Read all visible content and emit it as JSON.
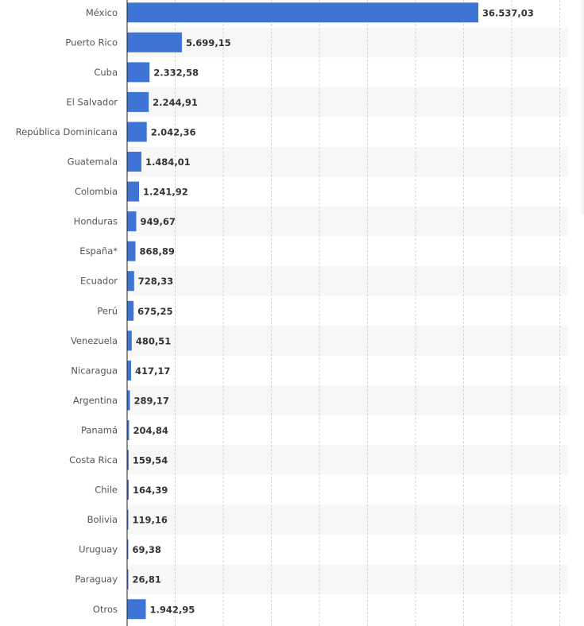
{
  "chart_data": {
    "type": "bar",
    "orientation": "horizontal",
    "categories": [
      "México",
      "Puerto Rico",
      "Cuba",
      "El Salvador",
      "República Dominicana",
      "Guatemala",
      "Colombia",
      "Honduras",
      "España*",
      "Ecuador",
      "Perú",
      "Venezuela",
      "Nicaragua",
      "Argentina",
      "Panamá",
      "Costa Rica",
      "Chile",
      "Bolivia",
      "Uruguay",
      "Paraguay",
      "Otros"
    ],
    "values": [
      36537.03,
      5699.15,
      2332.58,
      2244.91,
      2042.36,
      1484.01,
      1241.92,
      949.67,
      868.89,
      728.33,
      675.25,
      480.51,
      417.17,
      289.17,
      204.84,
      159.54,
      164.39,
      119.16,
      69.38,
      26.81,
      1942.95
    ],
    "value_labels": [
      "36.537,03",
      "5.699,15",
      "2.332,58",
      "2.244,91",
      "2.042,36",
      "1.484,01",
      "1.241,92",
      "949,67",
      "868,89",
      "728,33",
      "675,25",
      "480,51",
      "417,17",
      "289,17",
      "204,84",
      "159,54",
      "164,39",
      "119,16",
      "69,38",
      "26,81",
      "1.942,95"
    ],
    "title": "",
    "xlabel": "",
    "ylabel": "",
    "xlim": [
      0,
      36537.03
    ],
    "grid": true,
    "legend": "none",
    "colors": {
      "bar": "#3d74d6",
      "band": "#f7f7f7",
      "grid": "#d6d6d6",
      "axis": "#222222"
    }
  }
}
